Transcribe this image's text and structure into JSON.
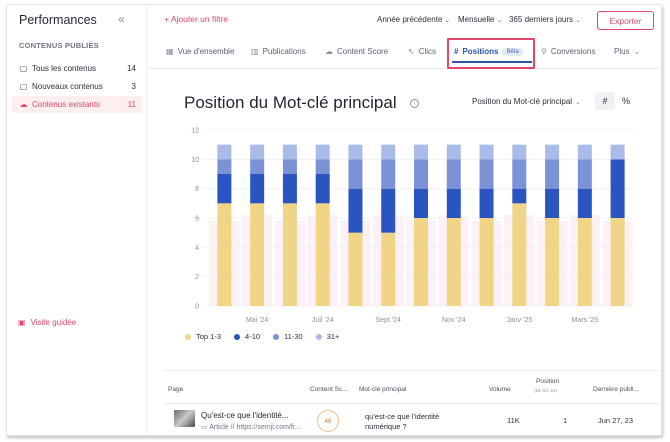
{
  "sidebar": {
    "title": "Performances",
    "collapse_icon": "double-chevron-left-icon",
    "section_label": "CONTENUS PUBLIÉS",
    "items": [
      {
        "icon": "document-icon",
        "label": "Tous les contenus",
        "count": "14"
      },
      {
        "icon": "new-document-icon",
        "label": "Nouveaux contenus",
        "count": "3"
      },
      {
        "icon": "cloud-icon",
        "label": "Contenus existants",
        "count": "11",
        "active": true
      }
    ],
    "guide_label": "Visite guidée"
  },
  "topbar": {
    "add_filter": "+ Ajouter un filtre",
    "compare_select": "Année précédente",
    "granularity_select": "Mensuelle",
    "range_select": "365 derniers jours",
    "export_label": "Exporter"
  },
  "tabs": [
    {
      "icon": "grid-icon",
      "label": "Vue d'ensemble"
    },
    {
      "icon": "bar-chart-icon",
      "label": "Publications"
    },
    {
      "icon": "cloud-icon",
      "label": "Content Score"
    },
    {
      "icon": "cursor-icon",
      "label": "Clics"
    },
    {
      "icon": "hash-icon",
      "label": "Positions",
      "badge": "Bêta",
      "active": true
    },
    {
      "icon": "funnel-icon",
      "label": "Conversions"
    },
    {
      "icon": "chevron-down-icon",
      "label": "Plus"
    }
  ],
  "chart_header": {
    "title": "Position du Mot-clé principal",
    "metric_select": "Position du Mot-clé principal",
    "toggle_hash": "#",
    "toggle_percent": "%"
  },
  "colors": {
    "accent": "#e0476a",
    "tab_active": "#2c54a8",
    "top_1_3": "#f0d587",
    "top_4_10": "#2a55c0",
    "top_11_30": "#7b92d6",
    "top_31_plus": "#a9bbe8",
    "shading": "#fdeef3"
  },
  "chart_data": {
    "type": "bar",
    "stacked": true,
    "categories": [
      "",
      "Mai '24",
      "",
      "Juil '24",
      "",
      "Sept '24",
      "",
      "Nov '24",
      "",
      "Janv '25",
      "",
      "Mars '25",
      ""
    ],
    "x_tick_labels": [
      "Mai '24",
      "Juil '24",
      "Sept '24",
      "Nov '24",
      "Janv '25",
      "Mars '25"
    ],
    "series": [
      {
        "name": "Top 1-3",
        "values": [
          7,
          7,
          7,
          7,
          5,
          5,
          6,
          6,
          6,
          7,
          6,
          6,
          6
        ]
      },
      {
        "name": "4-10",
        "values": [
          2,
          2,
          2,
          2,
          3,
          3,
          2,
          2,
          2,
          1,
          2,
          2,
          4
        ]
      },
      {
        "name": "11-30",
        "values": [
          1,
          1,
          1,
          1,
          2,
          2,
          2,
          2,
          2,
          2,
          2,
          2,
          0
        ]
      },
      {
        "name": "31+",
        "values": [
          1,
          1,
          1,
          1,
          1,
          1,
          1,
          1,
          1,
          1,
          1,
          1,
          1
        ]
      }
    ],
    "y_ticks": [
      0,
      2,
      4,
      6,
      8,
      10,
      12
    ],
    "ylim": [
      0,
      12
    ],
    "xlabel": "",
    "ylabel": "",
    "grid": true,
    "legend_position": "bottom-left"
  },
  "table": {
    "headers": {
      "page": "Page",
      "score": "Content Sc...",
      "keyword": "Mot-clé principal",
      "volume": "Volume",
      "position": "Position",
      "position_sub": "(15 Avr. 24)",
      "date": "Dernière publi..."
    },
    "rows": [
      {
        "title": "Qu'est-ce que l'identité...",
        "type": "Article",
        "url": "https://semji.com/fr...",
        "score": "46",
        "keyword": "qu'est-ce que l'identité numérique ?",
        "volume": "11K",
        "position": "1",
        "date": "Jun 27, 23"
      }
    ]
  }
}
